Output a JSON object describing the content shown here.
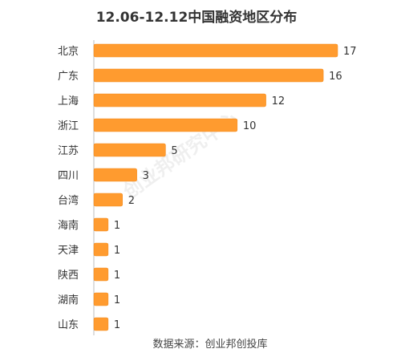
{
  "chart_data": {
    "type": "bar",
    "orientation": "horizontal",
    "title": "12.06-12.12中国融资地区分布",
    "categories": [
      "北京",
      "广东",
      "上海",
      "浙江",
      "江苏",
      "四川",
      "台湾",
      "海南",
      "天津",
      "陕西",
      "湖南",
      "山东"
    ],
    "values": [
      17,
      16,
      12,
      10,
      5,
      3,
      2,
      1,
      1,
      1,
      1,
      1
    ],
    "xlim": [
      0,
      17
    ],
    "grid": false,
    "legend": "none",
    "source": "数据来源：创业邦创投库",
    "watermark": "创业邦研究中心",
    "colors": {
      "bar": "#FF9B2F",
      "bar_edge": "#F28A1C",
      "text": "#333333",
      "axis": "#bdbdbd"
    }
  }
}
